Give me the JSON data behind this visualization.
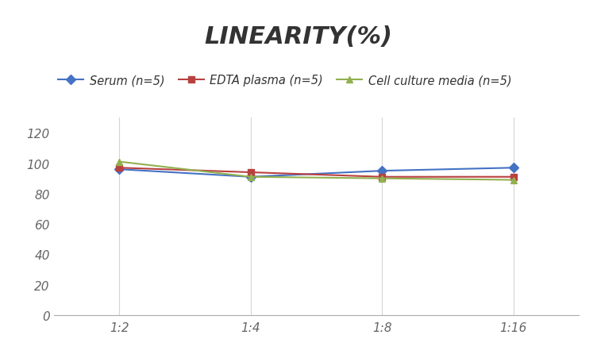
{
  "title": "LINEARITY(%)",
  "x_labels": [
    "1:2",
    "1:4",
    "1:8",
    "1:16"
  ],
  "x_positions": [
    0,
    1,
    2,
    3
  ],
  "series": [
    {
      "label": "Serum (n=5)",
      "color": "#4472C4",
      "marker": "D",
      "values": [
        96,
        91,
        95,
        97
      ]
    },
    {
      "label": "EDTA plasma (n=5)",
      "color": "#B94040",
      "marker": "s",
      "values": [
        97,
        94,
        91,
        91
      ]
    },
    {
      "label": "Cell culture media (n=5)",
      "color": "#92B050",
      "marker": "^",
      "values": [
        101,
        91,
        90,
        89
      ]
    }
  ],
  "ylim": [
    0,
    130
  ],
  "yticks": [
    0,
    20,
    40,
    60,
    80,
    100,
    120
  ],
  "background_color": "#ffffff",
  "grid_color": "#d5d5d5",
  "title_fontsize": 22,
  "legend_fontsize": 10.5,
  "tick_fontsize": 11
}
